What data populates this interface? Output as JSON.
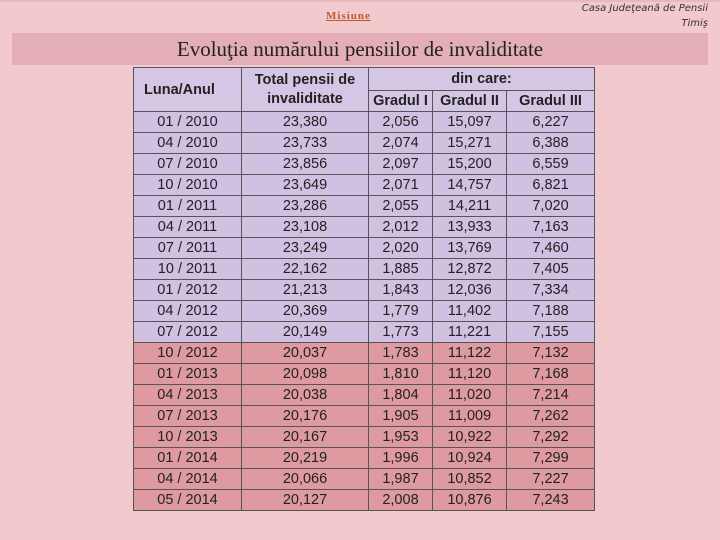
{
  "header": {
    "misiune": "Misiune",
    "org_line1": "Casa Judeţeană de Pensii",
    "org_line2": "Timiş"
  },
  "title": "Evoluţia numărului pensiilor de invaliditate",
  "table": {
    "col_luna": "Luna/Anul",
    "col_total": "Total pensii de invaliditate",
    "col_group": "din care:",
    "col_g1": "Gradul I",
    "col_g2": "Gradul II",
    "col_g3": "Gradul III",
    "colors": {
      "lavender": "#d0c0e2",
      "pink": "#de9aa0",
      "header": "#d6c6e6"
    },
    "rows": [
      {
        "luna": "01 / 2010",
        "total": "23,380",
        "g1": "2,056",
        "g2": "15,097",
        "g3": "6,227",
        "style": "lav"
      },
      {
        "luna": "04 / 2010",
        "total": "23,733",
        "g1": "2,074",
        "g2": "15,271",
        "g3": "6,388",
        "style": "lav"
      },
      {
        "luna": "07 / 2010",
        "total": "23,856",
        "g1": "2,097",
        "g2": "15,200",
        "g3": "6,559",
        "style": "lav"
      },
      {
        "luna": "10 / 2010",
        "total": "23,649",
        "g1": "2,071",
        "g2": "14,757",
        "g3": "6,821",
        "style": "lav"
      },
      {
        "luna": "01 / 2011",
        "total": "23,286",
        "g1": "2,055",
        "g2": "14,211",
        "g3": "7,020",
        "style": "lav"
      },
      {
        "luna": "04 / 2011",
        "total": "23,108",
        "g1": "2,012",
        "g2": "13,933",
        "g3": "7,163",
        "style": "lav"
      },
      {
        "luna": "07 / 2011",
        "total": "23,249",
        "g1": "2,020",
        "g2": "13,769",
        "g3": "7,460",
        "style": "lav"
      },
      {
        "luna": "10 / 2011",
        "total": "22,162",
        "g1": "1,885",
        "g2": "12,872",
        "g3": "7,405",
        "style": "lav"
      },
      {
        "luna": "01 / 2012",
        "total": "21,213",
        "g1": "1,843",
        "g2": "12,036",
        "g3": "7,334",
        "style": "lav"
      },
      {
        "luna": "04 / 2012",
        "total": "20,369",
        "g1": "1,779",
        "g2": "11,402",
        "g3": "7,188",
        "style": "lav"
      },
      {
        "luna": "07 / 2012",
        "total": "20,149",
        "g1": "1,773",
        "g2": "11,221",
        "g3": "7,155",
        "style": "lav"
      },
      {
        "luna": "10 / 2012",
        "total": "20,037",
        "g1": "1,783",
        "g2": "11,122",
        "g3": "7,132",
        "style": "pink"
      },
      {
        "luna": "01 / 2013",
        "total": "20,098",
        "g1": "1,810",
        "g2": "11,120",
        "g3": "7,168",
        "style": "pink"
      },
      {
        "luna": "04 / 2013",
        "total": "20,038",
        "g1": "1,804",
        "g2": "11,020",
        "g3": "7,214",
        "style": "pink"
      },
      {
        "luna": "07 / 2013",
        "total": "20,176",
        "g1": "1,905",
        "g2": "11,009",
        "g3": "7,262",
        "style": "pink"
      },
      {
        "luna": "10 / 2013",
        "total": "20,167",
        "g1": "1,953",
        "g2": "10,922",
        "g3": "7,292",
        "style": "pink"
      },
      {
        "luna": "01 / 2014",
        "total": "20,219",
        "g1": "1,996",
        "g2": "10,924",
        "g3": "7,299",
        "style": "pink"
      },
      {
        "luna": "04 / 2014",
        "total": "20,066",
        "g1": "1,987",
        "g2": "10,852",
        "g3": "7,227",
        "style": "pink"
      },
      {
        "luna": "05 / 2014",
        "total": "20,127",
        "g1": "2,008",
        "g2": "10,876",
        "g3": "7,243",
        "style": "pink"
      }
    ]
  }
}
